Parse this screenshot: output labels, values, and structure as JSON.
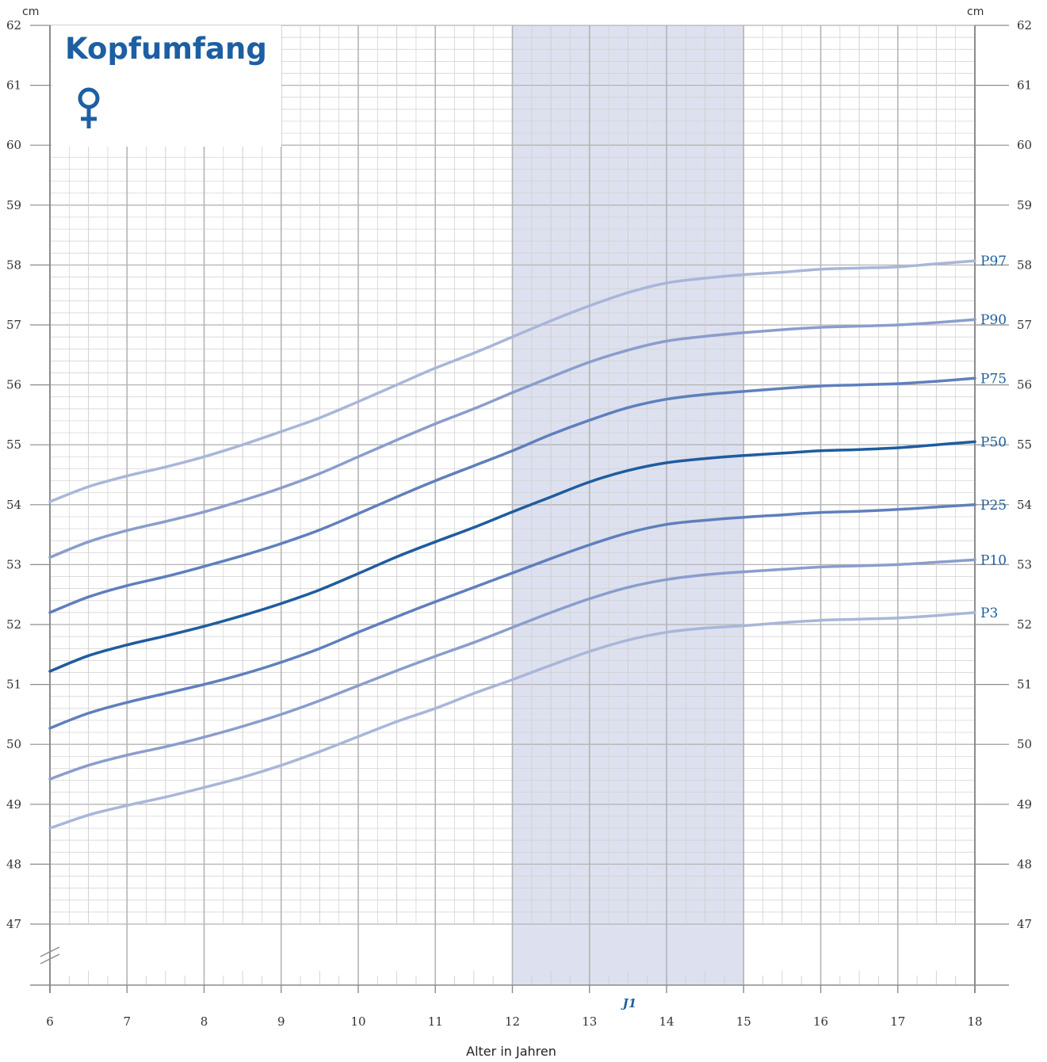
{
  "title": "Kopfumfang",
  "sex_symbol": "♀",
  "unit_left": "cm",
  "unit_right": "cm",
  "xlabel": "Alter in Jahren",
  "band_label": "J1",
  "colors": {
    "band": "#dde1ef",
    "grid_major": "#b4b4b4",
    "grid_minor": "#cfcfcf",
    "title": "#1d5fa3",
    "label": "#1f5f9e"
  },
  "chart_data": {
    "type": "line",
    "title": "Kopfumfang",
    "xlabel": "Alter in Jahren",
    "ylabel": "cm",
    "xlim": [
      6,
      18
    ],
    "ylim": [
      46,
      62
    ],
    "x_ticks": [
      6,
      7,
      8,
      9,
      10,
      11,
      12,
      13,
      14,
      15,
      16,
      17,
      18
    ],
    "y_ticks": [
      47,
      48,
      49,
      50,
      51,
      52,
      53,
      54,
      55,
      56,
      57,
      58,
      59,
      60,
      61,
      62
    ],
    "highlight_band": {
      "x": [
        12,
        15
      ],
      "label": "J1"
    },
    "grid": true,
    "x": [
      6,
      6.5,
      7,
      7.5,
      8,
      8.5,
      9,
      9.5,
      10,
      10.5,
      11,
      11.5,
      12,
      12.5,
      13,
      13.5,
      14,
      14.5,
      15,
      15.5,
      16,
      16.5,
      17,
      17.5,
      18
    ],
    "series": [
      {
        "name": "P97",
        "color": "#a9b6d9",
        "values": [
          54.05,
          54.3,
          54.48,
          54.63,
          54.8,
          55.0,
          55.22,
          55.45,
          55.72,
          56.0,
          56.28,
          56.53,
          56.8,
          57.07,
          57.32,
          57.54,
          57.7,
          57.78,
          57.84,
          57.88,
          57.93,
          57.95,
          57.97,
          58.02,
          58.07
        ]
      },
      {
        "name": "P90",
        "color": "#8a9dcc",
        "values": [
          53.12,
          53.38,
          53.57,
          53.72,
          53.88,
          54.07,
          54.28,
          54.52,
          54.8,
          55.08,
          55.35,
          55.6,
          55.87,
          56.13,
          56.38,
          56.58,
          56.73,
          56.81,
          56.87,
          56.92,
          56.96,
          56.98,
          57.0,
          57.04,
          57.09
        ]
      },
      {
        "name": "P75",
        "color": "#5f7fbd",
        "values": [
          52.2,
          52.46,
          52.65,
          52.8,
          52.97,
          53.15,
          53.35,
          53.58,
          53.85,
          54.13,
          54.4,
          54.65,
          54.9,
          55.17,
          55.41,
          55.62,
          55.76,
          55.84,
          55.89,
          55.94,
          55.98,
          56.0,
          56.02,
          56.06,
          56.11
        ]
      },
      {
        "name": "P50",
        "color": "#1f5c9e",
        "values": [
          51.22,
          51.48,
          51.66,
          51.81,
          51.97,
          52.15,
          52.35,
          52.58,
          52.85,
          53.13,
          53.38,
          53.62,
          53.88,
          54.13,
          54.38,
          54.57,
          54.7,
          54.77,
          54.82,
          54.86,
          54.9,
          54.92,
          54.95,
          55.0,
          55.05
        ]
      },
      {
        "name": "P25",
        "color": "#5f7fbd",
        "values": [
          50.27,
          50.52,
          50.7,
          50.85,
          51.0,
          51.17,
          51.37,
          51.6,
          51.87,
          52.13,
          52.38,
          52.62,
          52.86,
          53.1,
          53.33,
          53.53,
          53.67,
          53.74,
          53.79,
          53.83,
          53.87,
          53.89,
          53.92,
          53.96,
          54.0
        ]
      },
      {
        "name": "P10",
        "color": "#8a9dcc",
        "values": [
          49.42,
          49.65,
          49.82,
          49.96,
          50.12,
          50.3,
          50.5,
          50.73,
          50.98,
          51.23,
          51.47,
          51.7,
          51.95,
          52.2,
          52.43,
          52.62,
          52.75,
          52.83,
          52.88,
          52.92,
          52.96,
          52.98,
          53.0,
          53.04,
          53.08
        ]
      },
      {
        "name": "P3",
        "color": "#a9b6d9",
        "values": [
          48.6,
          48.82,
          48.98,
          49.12,
          49.28,
          49.45,
          49.65,
          49.88,
          50.13,
          50.38,
          50.6,
          50.85,
          51.08,
          51.32,
          51.55,
          51.74,
          51.87,
          51.94,
          51.98,
          52.03,
          52.07,
          52.09,
          52.11,
          52.15,
          52.2
        ]
      }
    ]
  }
}
